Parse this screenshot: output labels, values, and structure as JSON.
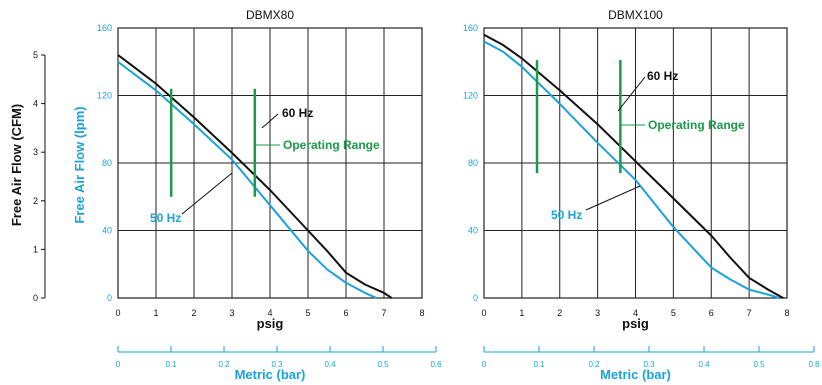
{
  "y_outer_axis": {
    "label": "Free Air Flow (CFM)",
    "ticks": [
      "0",
      "1",
      "2",
      "3",
      "4",
      "5"
    ],
    "color": "#111111"
  },
  "y_inner_axis": {
    "label": "Free Air Flow (lpm)",
    "color": "#1aa3d9"
  },
  "colors": {
    "hz60": "#111111",
    "hz50": "#1aa3d9",
    "operating": "#1a9a4a",
    "grid": "#222222",
    "metric_axis": "#1aa3d9"
  },
  "chart_data": [
    {
      "type": "line",
      "title": "DBMX80",
      "xlabel": "psig",
      "ylabel": "Free Air Flow (lpm)",
      "xlim": [
        0,
        8
      ],
      "ylim": [
        0,
        160
      ],
      "x_ticks": [
        "0",
        "1",
        "2",
        "3",
        "4",
        "5",
        "6",
        "7",
        "8"
      ],
      "y_ticks": [
        "0",
        "40",
        "80",
        "120",
        "160"
      ],
      "metric_axis": {
        "label": "Metric (bar)",
        "ticks": [
          "0",
          "0.1",
          "0.2",
          "0.3",
          "0.4",
          "0.5",
          "0.6"
        ]
      },
      "grid": true,
      "series": [
        {
          "name": "60 Hz",
          "color": "#111111",
          "x": [
            0,
            1,
            2,
            3,
            4,
            5,
            5.5,
            6,
            6.5,
            7,
            7.2
          ],
          "y": [
            144,
            127,
            107,
            86,
            64,
            40,
            28,
            15,
            8,
            3,
            0
          ]
        },
        {
          "name": "50 Hz",
          "color": "#1aa3d9",
          "x": [
            0,
            1,
            2,
            3,
            4,
            5,
            5.5,
            6,
            6.5,
            6.8
          ],
          "y": [
            140,
            123,
            103,
            82,
            55,
            28,
            17,
            9,
            3,
            0
          ]
        }
      ],
      "operating_range": {
        "label": "Operating Range",
        "x": [
          1.4,
          3.6
        ],
        "y": [
          60,
          124
        ]
      },
      "annotations": [
        {
          "text": "60 Hz",
          "series": "60 Hz"
        },
        {
          "text": "50 Hz",
          "series": "50 Hz"
        }
      ]
    },
    {
      "type": "line",
      "title": "DBMX100",
      "xlabel": "psig",
      "ylabel": "Free Air Flow (lpm)",
      "xlim": [
        0,
        8
      ],
      "ylim": [
        0,
        160
      ],
      "x_ticks": [
        "0",
        "1",
        "2",
        "3",
        "4",
        "5",
        "6",
        "7",
        "8"
      ],
      "y_ticks": [
        "0",
        "40",
        "80",
        "120",
        "160"
      ],
      "metric_axis": {
        "label": "Metric (bar)",
        "ticks": [
          "0",
          "0.1",
          "0.2",
          "0.3",
          "0.4",
          "0.5",
          "0.6"
        ]
      },
      "grid": true,
      "series": [
        {
          "name": "60 Hz",
          "color": "#111111",
          "x": [
            0,
            0.5,
            1,
            2,
            3,
            4,
            5,
            6,
            6.5,
            7,
            7.5,
            7.9
          ],
          "y": [
            156,
            150,
            142,
            123,
            103,
            81,
            59,
            37,
            24,
            12,
            5,
            0
          ]
        },
        {
          "name": "50 Hz",
          "color": "#1aa3d9",
          "x": [
            0,
            0.5,
            1,
            2,
            3,
            4,
            5,
            6,
            6.5,
            7,
            7.5,
            7.8
          ],
          "y": [
            152,
            146,
            137,
            115,
            92,
            70,
            42,
            18,
            11,
            5,
            2,
            0
          ]
        }
      ],
      "operating_range": {
        "label": "Operating Range",
        "x": [
          1.4,
          3.6
        ],
        "y": [
          74,
          141
        ]
      },
      "annotations": [
        {
          "text": "60 Hz",
          "series": "60 Hz"
        },
        {
          "text": "50 Hz",
          "series": "50 Hz"
        }
      ]
    }
  ]
}
